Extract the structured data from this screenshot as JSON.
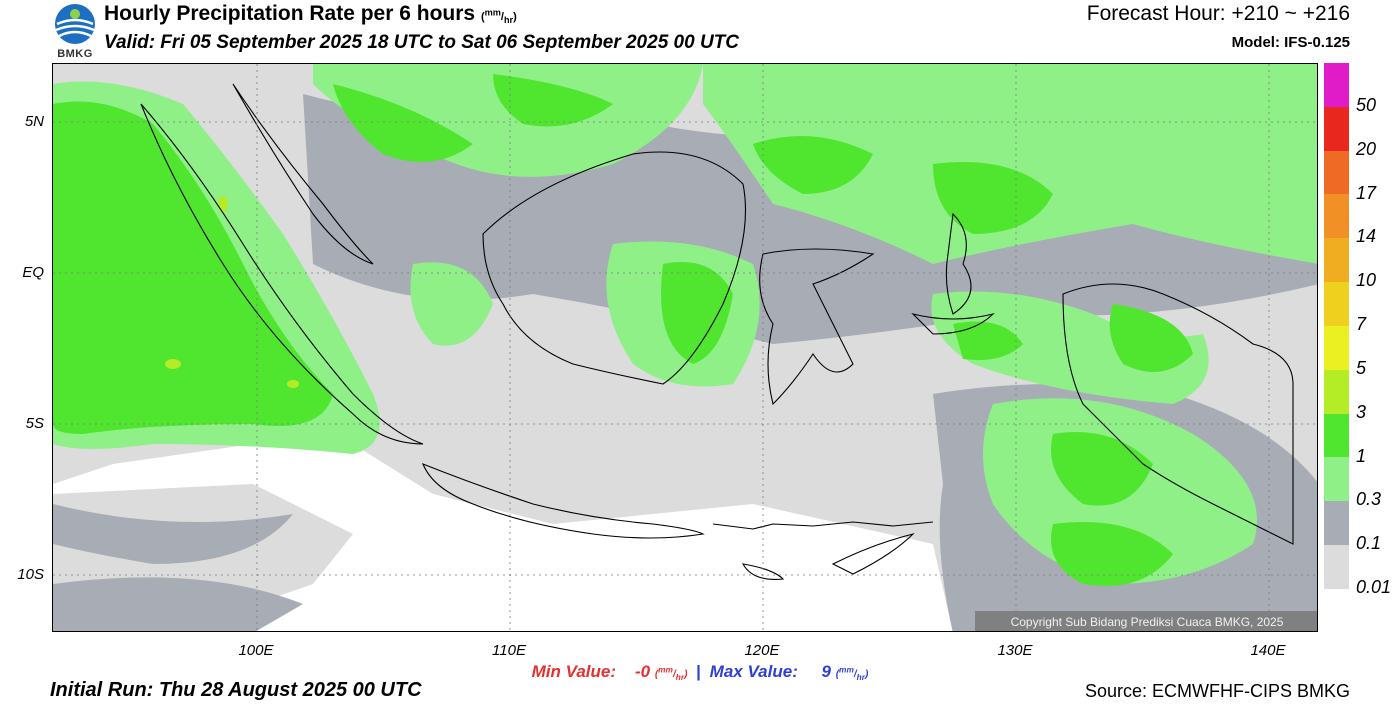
{
  "header": {
    "title": "Hourly Precipitation Rate per 6 hours",
    "title_unit_num": "mm",
    "title_unit_den": "hr",
    "valid": "Valid: Fri 05 September 2025 18 UTC to Sat 06 September 2025 00 UTC",
    "forecast_hour": "Forecast Hour: +210 ~ +216",
    "model": "Model: IFS-0.125",
    "logo_text": "BMKG"
  },
  "map": {
    "lat_labels": [
      "5N",
      "EQ",
      "5S",
      "10S"
    ],
    "lon_labels": [
      "100E",
      "110E",
      "120E",
      "130E",
      "140E"
    ],
    "copyright": "Copyright Sub Bidang Prediksi Cuaca BMKG, 2025"
  },
  "colorbar": {
    "labels": [
      "50",
      "20",
      "17",
      "14",
      "10",
      "7",
      "5",
      "3",
      "1",
      "0.3",
      "0.1",
      "0.01"
    ],
    "colors": [
      "#e01bc8",
      "#e8281e",
      "#ef6a24",
      "#f09025",
      "#f0ad22",
      "#efd01e",
      "#eaf022",
      "#b4ec26",
      "#50e630",
      "#8ff088",
      "#a8adb5",
      "#dcdcdc"
    ]
  },
  "footer": {
    "min_label": "Min Value:",
    "min_value": "-0",
    "max_label": "Max Value:",
    "max_value": "9",
    "unit_num": "mm",
    "unit_den": "hr",
    "initial_run": "Initial Run: Thu 28 August 2025 00 UTC",
    "source": "Source: ECMWFHF-CIPS BMKG"
  }
}
